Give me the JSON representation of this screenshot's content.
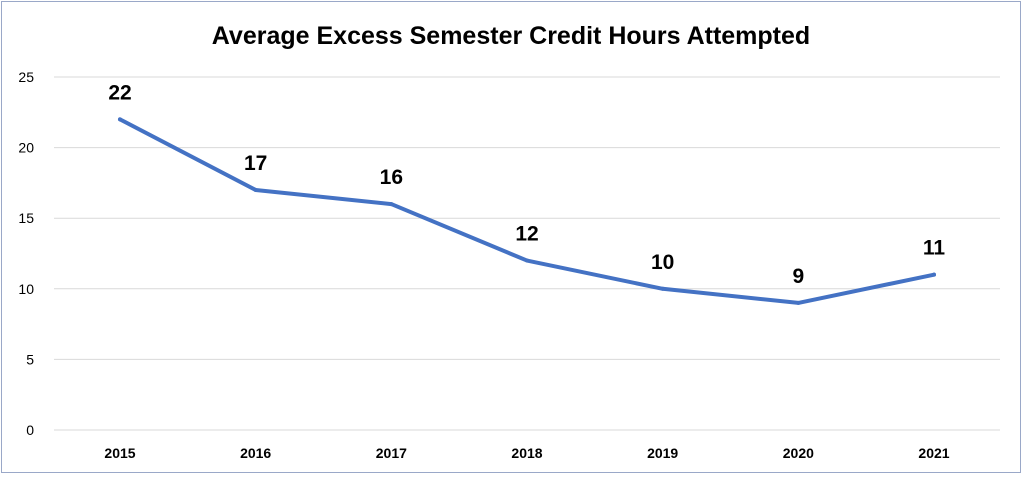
{
  "chart_data": {
    "type": "line",
    "title": "Average Excess Semester Credit Hours Attempted",
    "xlabel": "",
    "ylabel": "",
    "categories": [
      "2015",
      "2016",
      "2017",
      "2018",
      "2019",
      "2020",
      "2021"
    ],
    "series": [
      {
        "values": [
          22,
          17,
          16,
          12,
          10,
          9,
          11
        ]
      }
    ],
    "ylim": [
      0,
      25
    ],
    "yticks": [
      0,
      5,
      10,
      15,
      20,
      25
    ],
    "grid": true,
    "data_labels": true,
    "colors": {
      "line": "#4472C4",
      "grid": "#d9d9d9"
    }
  }
}
